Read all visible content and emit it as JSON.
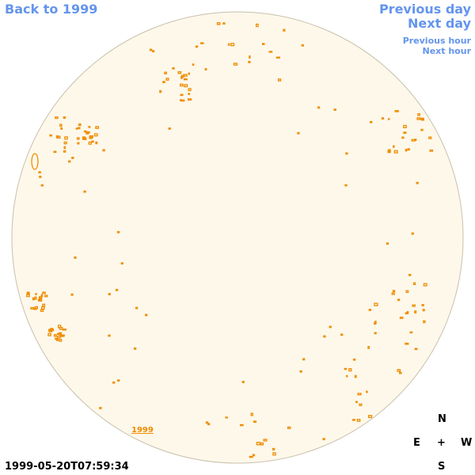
{
  "nav": {
    "back_year": "Back to 1999",
    "previous_day": "Previous day",
    "next_day": "Next day",
    "previous_hour": "Previous hour",
    "next_hour": "Next hour"
  },
  "disk": {
    "year_label": "1999"
  },
  "compass": {
    "north": "N",
    "east": "E",
    "center": "+",
    "west": "W",
    "south": "S"
  },
  "timestamp": "1999-05-20T07:59:34"
}
